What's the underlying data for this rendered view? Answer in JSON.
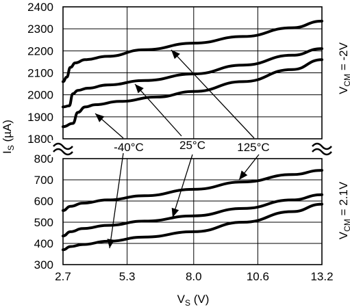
{
  "chart_data": {
    "type": "line",
    "xlabel": "V",
    "xlabel_sub": "S",
    "xlabel_unit": " (V)",
    "ylabel": "I",
    "ylabel_sub": "S",
    "ylabel_unit": " (µA)",
    "x_ticks": [
      "2.7",
      "5.3",
      "8.0",
      "10.6",
      "13.2"
    ],
    "x_tick_values": [
      2.7,
      5.3,
      8.0,
      10.6,
      13.2
    ],
    "xlim": [
      2.7,
      13.2
    ],
    "panels": [
      {
        "id": "top",
        "condition_label": {
          "prefix": "V",
          "sub": "CM",
          "suffix": " = -2V"
        },
        "ylim": [
          1800,
          2400
        ],
        "y_ticks": [
          1800,
          1900,
          2000,
          2100,
          2200,
          2300,
          2400
        ],
        "series": [
          {
            "x": [
              2.7,
              2.85,
              3.0,
              3.2,
              3.6,
              4.5,
              6.0,
              8.0,
              10.0,
              12.0,
              13.2
            ],
            "y": [
              2060,
              2080,
              2125,
              2145,
              2160,
              2175,
              2205,
              2235,
              2265,
              2305,
              2335
            ]
          },
          {
            "x": [
              2.7,
              2.95,
              3.1,
              3.3,
              3.7,
              4.5,
              6.0,
              8.0,
              10.0,
              12.0,
              13.2
            ],
            "y": [
              1945,
              1950,
              2005,
              2020,
              2030,
              2045,
              2065,
              2095,
              2135,
              2180,
              2210
            ]
          },
          {
            "x": [
              2.7,
              3.1,
              3.3,
              3.6,
              4.0,
              5.0,
              6.5,
              8.0,
              10.0,
              12.0,
              13.2
            ],
            "y": [
              1855,
              1870,
              1920,
              1945,
              1955,
              1970,
              1990,
              2015,
              2060,
              2115,
              2160
            ]
          }
        ]
      },
      {
        "id": "bottom",
        "condition_label": {
          "prefix": "V",
          "sub": "CM",
          "suffix": " = 2.1V"
        },
        "ylim": [
          300,
          800
        ],
        "y_ticks": [
          300,
          400,
          500,
          600,
          700,
          800
        ],
        "series": [
          {
            "x": [
              2.7,
              3.0,
              3.5,
              4.5,
              6.0,
              8.0,
              10.0,
              12.0,
              13.2
            ],
            "y": [
              555,
              575,
              590,
              605,
              625,
              655,
              690,
              725,
              745
            ]
          },
          {
            "x": [
              2.7,
              3.0,
              3.5,
              4.5,
              6.0,
              8.0,
              10.0,
              12.0,
              13.2
            ],
            "y": [
              435,
              455,
              470,
              485,
              505,
              530,
              565,
              605,
              630
            ]
          },
          {
            "x": [
              2.7,
              3.0,
              3.5,
              4.5,
              6.0,
              8.0,
              10.0,
              12.0,
              13.2
            ],
            "y": [
              370,
              385,
              395,
              410,
              430,
              455,
              500,
              550,
              585
            ]
          }
        ]
      }
    ],
    "annotations": [
      "-40°C",
      "25°C",
      "125°C"
    ],
    "grid": true
  }
}
